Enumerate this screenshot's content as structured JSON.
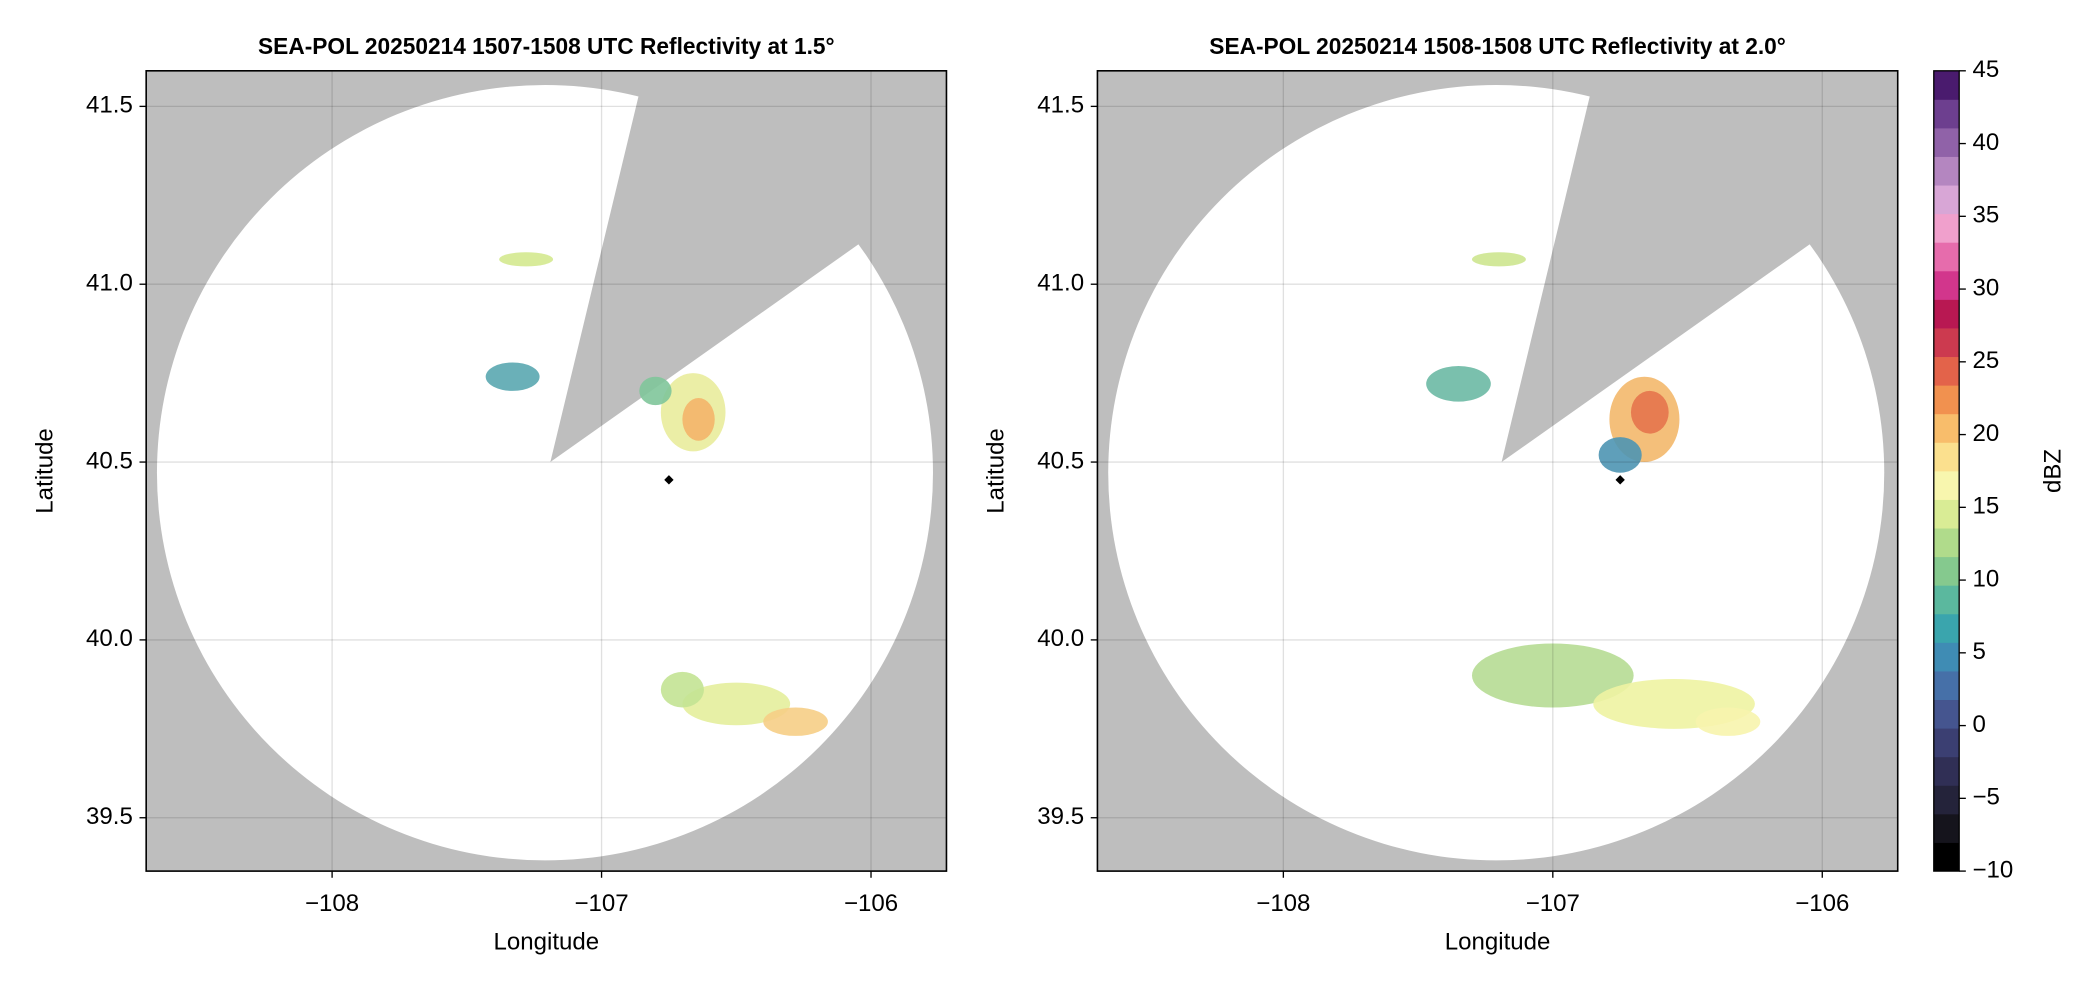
{
  "chart_data": [
    {
      "type": "radar-map",
      "title": "SEA-POL 20250214 1507-1508 UTC Reflectivity at 1.5°",
      "xlabel": "Longitude",
      "ylabel": "Latitude",
      "xlim": [
        -108.69,
        -105.72
      ],
      "ylim": [
        39.35,
        41.6
      ],
      "xticks": [
        {
          "value": -108,
          "label": "−108"
        },
        {
          "value": -107,
          "label": "−107"
        },
        {
          "value": -106,
          "label": "−106"
        }
      ],
      "yticks": [
        39.5,
        {
          "value": 40,
          "label": "40.0"
        },
        40.5,
        {
          "value": 41,
          "label": "41.0"
        },
        41.5
      ],
      "grid": true,
      "x": [
        -106.75
      ],
      "y": [
        40.45
      ]
    },
    {
      "type": "radar-map",
      "title": "SEA-POL 20250214 1508-1508 UTC Reflectivity at 2.0°",
      "xlabel": "Longitude",
      "ylabel": "Latitude",
      "xlim": [
        -108.69,
        -105.72
      ],
      "ylim": [
        39.35,
        41.6
      ],
      "xticks": [
        {
          "value": -108,
          "label": "−108"
        },
        {
          "value": -107,
          "label": "−107"
        },
        {
          "value": -106,
          "label": "−106"
        }
      ],
      "yticks": [
        39.5,
        {
          "value": 40,
          "label": "40.0"
        },
        40.5,
        {
          "value": 41,
          "label": "41.0"
        },
        41.5
      ],
      "grid": true,
      "x": [
        -106.75
      ],
      "y": [
        40.45
      ],
      "colorbar": {
        "label": "dBZ",
        "lim": [
          -10,
          45
        ],
        "ticks": [
          {
            "value": -10,
            "label": "−10"
          },
          {
            "value": -5,
            "label": "−5"
          },
          0,
          5,
          10,
          15,
          20,
          25,
          30,
          35,
          40,
          45
        ],
        "colors": [
          "#000000",
          "#15141c",
          "#24233a",
          "#302f55",
          "#3b3f72",
          "#45558f",
          "#4670a8",
          "#3f8cb4",
          "#3aa5ad",
          "#5bb89e",
          "#85c98e",
          "#b0db8b",
          "#d9ec95",
          "#f8f6ae",
          "#fbe08e",
          "#f8bd6b",
          "#f1914f",
          "#e3634a",
          "#cc3a4f",
          "#b81852",
          "#d2368c",
          "#e66cac",
          "#f0a0cc",
          "#d8a6d6",
          "#b486c0",
          "#9062a8",
          "#6d3f8f",
          "#4a1b6e"
        ]
      }
    }
  ]
}
